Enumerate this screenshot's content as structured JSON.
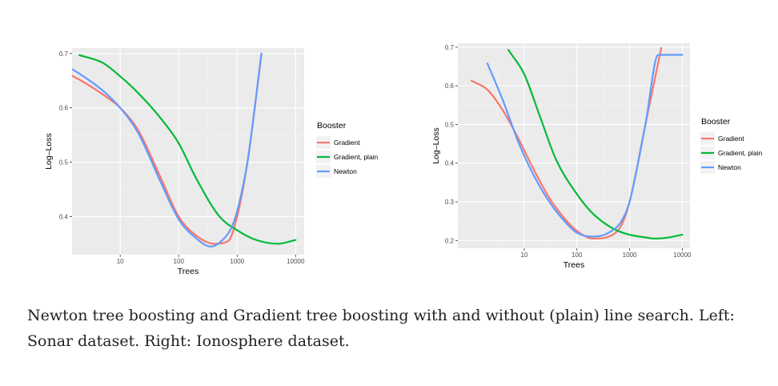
{
  "chart_data": [
    {
      "type": "line",
      "xlabel": "Trees",
      "ylabel": "Log–Loss",
      "x_scale": "log",
      "xlim": [
        1.5,
        14000
      ],
      "ylim": [
        0.33,
        0.71
      ],
      "x_ticks": [
        10,
        100,
        1000,
        10000
      ],
      "x_tick_labels": [
        "10",
        "100",
        "1000",
        "10000"
      ],
      "y_ticks": [
        0.4,
        0.5,
        0.6,
        0.7
      ],
      "y_tick_labels": [
        "0.4",
        "0.5",
        "0.6",
        "0.7"
      ],
      "grid": true,
      "legend": {
        "title": "Booster",
        "placement": "right"
      },
      "series": [
        {
          "name": "Gradient",
          "color": "#f8766d",
          "x": [
            1,
            2,
            5,
            10,
            20,
            50,
            100,
            200,
            400,
            700,
            1000,
            1500,
            2000,
            2600
          ],
          "y": [
            0.668,
            0.652,
            0.625,
            0.6,
            0.56,
            0.47,
            0.4,
            0.365,
            0.35,
            0.355,
            0.4,
            0.5,
            0.6,
            0.698
          ]
        },
        {
          "name": "Gradient, plain",
          "color": "#00ba38",
          "x": [
            2,
            5,
            10,
            20,
            50,
            100,
            200,
            500,
            1000,
            2000,
            5000,
            10000
          ],
          "y": [
            0.697,
            0.683,
            0.658,
            0.628,
            0.58,
            0.535,
            0.47,
            0.4,
            0.375,
            0.358,
            0.35,
            0.357
          ]
        },
        {
          "name": "Newton",
          "color": "#619cff",
          "x": [
            1,
            2,
            5,
            10,
            20,
            50,
            100,
            200,
            350,
            500,
            800,
            1000,
            1500,
            2000,
            2600
          ],
          "y": [
            0.682,
            0.663,
            0.632,
            0.6,
            0.555,
            0.462,
            0.395,
            0.36,
            0.345,
            0.352,
            0.38,
            0.41,
            0.5,
            0.6,
            0.7
          ]
        }
      ]
    },
    {
      "type": "line",
      "xlabel": "Trees",
      "ylabel": "Log–Loss",
      "x_scale": "log",
      "xlim": [
        0.55,
        14000
      ],
      "ylim": [
        0.18,
        0.71
      ],
      "x_ticks": [
        10,
        100,
        1000,
        10000
      ],
      "x_tick_labels": [
        "10",
        "100",
        "1000",
        "10000"
      ],
      "y_ticks": [
        0.2,
        0.3,
        0.4,
        0.5,
        0.6,
        0.7
      ],
      "y_tick_labels": [
        "0.2",
        "0.3",
        "0.4",
        "0.5",
        "0.6",
        "0.7"
      ],
      "grid": true,
      "legend": {
        "title": "Booster",
        "placement": "right"
      },
      "series": [
        {
          "name": "Gradient",
          "color": "#f8766d",
          "x": [
            1,
            2,
            4,
            8,
            15,
            30,
            60,
            100,
            200,
            400,
            700,
            1000,
            2000,
            4000
          ],
          "y": [
            0.613,
            0.59,
            0.535,
            0.46,
            0.385,
            0.31,
            0.255,
            0.225,
            0.205,
            0.21,
            0.24,
            0.3,
            0.5,
            0.698
          ]
        },
        {
          "name": "Gradient, plain",
          "color": "#00ba38",
          "x": [
            5,
            10,
            20,
            40,
            100,
            200,
            500,
            1000,
            2000,
            3000,
            5000,
            10000
          ],
          "y": [
            0.693,
            0.63,
            0.52,
            0.41,
            0.32,
            0.27,
            0.23,
            0.215,
            0.208,
            0.205,
            0.207,
            0.215
          ]
        },
        {
          "name": "Newton",
          "color": "#619cff",
          "x": [
            2,
            4,
            8,
            15,
            30,
            60,
            100,
            200,
            400,
            700,
            1000,
            2000,
            3500,
            10000
          ],
          "y": [
            0.658,
            0.56,
            0.45,
            0.37,
            0.3,
            0.248,
            0.22,
            0.21,
            0.22,
            0.25,
            0.3,
            0.5,
            0.68,
            0.68
          ]
        }
      ]
    }
  ],
  "caption": {
    "line1": "Newton tree boosting and Gradient tree boosting with and without (plain) line search. Left:",
    "line2": "Sonar dataset. Right: Ionosphere dataset."
  }
}
